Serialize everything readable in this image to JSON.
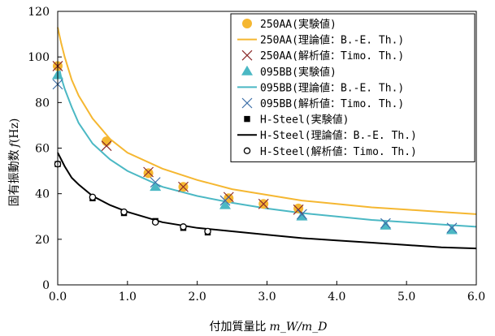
{
  "chart_data": {
    "type": "scatter",
    "xlabel": "付加質量比 m_W/m_D",
    "xlabel_main": "付加質量比",
    "xlabel_math": "m_W/m_D",
    "ylabel": "固有振動数 f (Hz)",
    "ylabel_main": "固有振動数",
    "ylabel_italic": "f",
    "ylabel_unit": "(Hz)",
    "xlim": [
      0,
      6
    ],
    "ylim": [
      0,
      120
    ],
    "x_ticks": [
      "0.0",
      "1.0",
      "2.0",
      "3.0",
      "4.0",
      "5.0",
      "6.0"
    ],
    "y_ticks": [
      "0",
      "20",
      "40",
      "60",
      "80",
      "100",
      "120"
    ],
    "legend_position": "top-right",
    "series": [
      {
        "name": "250AA(実験値)",
        "kind": "marker",
        "marker": "circle-filled",
        "color": "#F5B731",
        "x": [
          0.0,
          0.7,
          1.3,
          1.8,
          2.45,
          2.95,
          3.45
        ],
        "y": [
          96,
          63,
          49,
          43,
          38,
          35.5,
          33.5
        ]
      },
      {
        "name": "250AA(理論値：B.-E. Th.)",
        "kind": "line",
        "color": "#F5B731",
        "x": [
          0.0,
          0.05,
          0.1,
          0.2,
          0.3,
          0.5,
          0.75,
          1.0,
          1.5,
          2.0,
          2.5,
          3.0,
          3.5,
          4.0,
          4.5,
          5.0,
          5.5,
          6.0
        ],
        "y": [
          113,
          106,
          100,
          90,
          83,
          73,
          64,
          58,
          51,
          46,
          42,
          39.5,
          37,
          35.5,
          34,
          33,
          32,
          31
        ]
      },
      {
        "name": "250AA(解析値：Timo. Th.)",
        "kind": "marker",
        "marker": "x",
        "color": "#8B2A2A",
        "x": [
          0.0,
          0.7,
          1.3,
          1.8,
          2.45,
          2.95,
          3.45
        ],
        "y": [
          96,
          61,
          49.5,
          43,
          38.5,
          35.5,
          33
        ]
      },
      {
        "name": "095BB(実験値)",
        "kind": "marker",
        "marker": "triangle",
        "color": "#4BB8C4",
        "x": [
          0.0,
          1.4,
          2.4,
          3.5,
          4.7,
          5.65
        ],
        "y": [
          92,
          43,
          35,
          30,
          26,
          24
        ]
      },
      {
        "name": "095BB(理論値：B.-E. Th.)",
        "kind": "line",
        "color": "#4BB8C4",
        "x": [
          0.0,
          0.05,
          0.1,
          0.2,
          0.3,
          0.5,
          0.75,
          1.0,
          1.5,
          2.0,
          2.5,
          3.0,
          3.5,
          4.0,
          4.5,
          5.0,
          5.5,
          6.0
        ],
        "y": [
          98,
          91,
          86,
          78,
          71,
          62,
          55,
          50,
          43,
          39,
          36,
          33.5,
          31.5,
          30,
          28.5,
          27.5,
          26.5,
          25.5
        ]
      },
      {
        "name": "095BB(解析値：Timo. Th.)",
        "kind": "marker",
        "marker": "x",
        "color": "#3D6FA8",
        "x": [
          0.0,
          1.4,
          2.4,
          3.5,
          4.7,
          5.65
        ],
        "y": [
          88,
          45,
          37,
          31,
          27,
          25
        ]
      },
      {
        "name": "H-Steel(実験値)",
        "kind": "marker",
        "marker": "square",
        "color": "#000000",
        "x": [
          0.0,
          0.5,
          0.95,
          1.4,
          1.8,
          2.15
        ],
        "y": [
          53,
          38,
          31.5,
          28,
          25,
          23
        ]
      },
      {
        "name": "H-Steel(理論値：B.-E. Th.)",
        "kind": "line",
        "color": "#000000",
        "x": [
          0.0,
          0.05,
          0.1,
          0.2,
          0.3,
          0.5,
          0.75,
          1.0,
          1.5,
          2.0,
          2.5,
          3.0,
          3.5,
          4.0,
          4.5,
          5.0,
          5.5,
          6.0
        ],
        "y": [
          58,
          55,
          52,
          47,
          44,
          39,
          35,
          32,
          27.5,
          25,
          23.5,
          22,
          20.5,
          19.5,
          18.5,
          17.5,
          16.5,
          16
        ]
      },
      {
        "name": "H-Steel(解析値：Timo. Th.)",
        "kind": "marker",
        "marker": "circle-open",
        "color": "#000000",
        "x": [
          0.0,
          0.5,
          0.95,
          1.4,
          1.8,
          2.15
        ],
        "y": [
          53,
          38.5,
          32,
          27.5,
          25.5,
          23.5
        ]
      }
    ]
  }
}
